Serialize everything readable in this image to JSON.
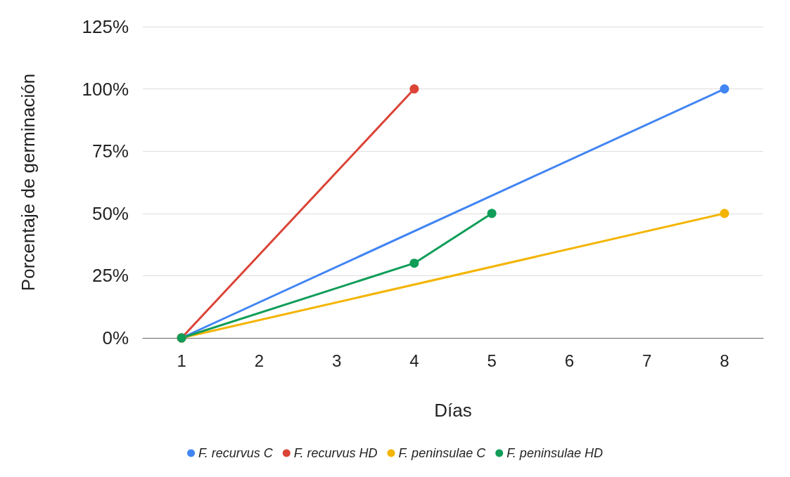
{
  "chart_data": {
    "type": "line",
    "xlabel": "Días",
    "ylabel": "Porcentaje de germinación",
    "xlim": [
      0.5,
      8.5
    ],
    "xticks": [
      1,
      2,
      3,
      4,
      5,
      6,
      7,
      8
    ],
    "ylim": [
      0,
      125
    ],
    "yticks": [
      {
        "value": 0,
        "label": "0%"
      },
      {
        "value": 25,
        "label": "25%"
      },
      {
        "value": 50,
        "label": "50%"
      },
      {
        "value": 75,
        "label": "75%"
      },
      {
        "value": 100,
        "label": "100%"
      },
      {
        "value": 125,
        "label": "125%"
      }
    ],
    "grid": "y",
    "legend": "bottom",
    "marker": "circle",
    "line_style": "solid",
    "series": [
      {
        "name": "F. recurvus C",
        "color": "#4285f4",
        "x": [
          1,
          8
        ],
        "values": [
          0,
          100
        ]
      },
      {
        "name": "F. recurvus HD",
        "color": "#db4437",
        "x": [
          1,
          4
        ],
        "values": [
          0,
          100
        ]
      },
      {
        "name": "F. peninsulae C",
        "color": "#f4b400",
        "x": [
          1,
          8
        ],
        "values": [
          0,
          50
        ]
      },
      {
        "name": "F. peninsulae HD",
        "color": "#0f9d58",
        "x": [
          1,
          4,
          5
        ],
        "values": [
          0,
          30,
          50
        ]
      }
    ]
  }
}
